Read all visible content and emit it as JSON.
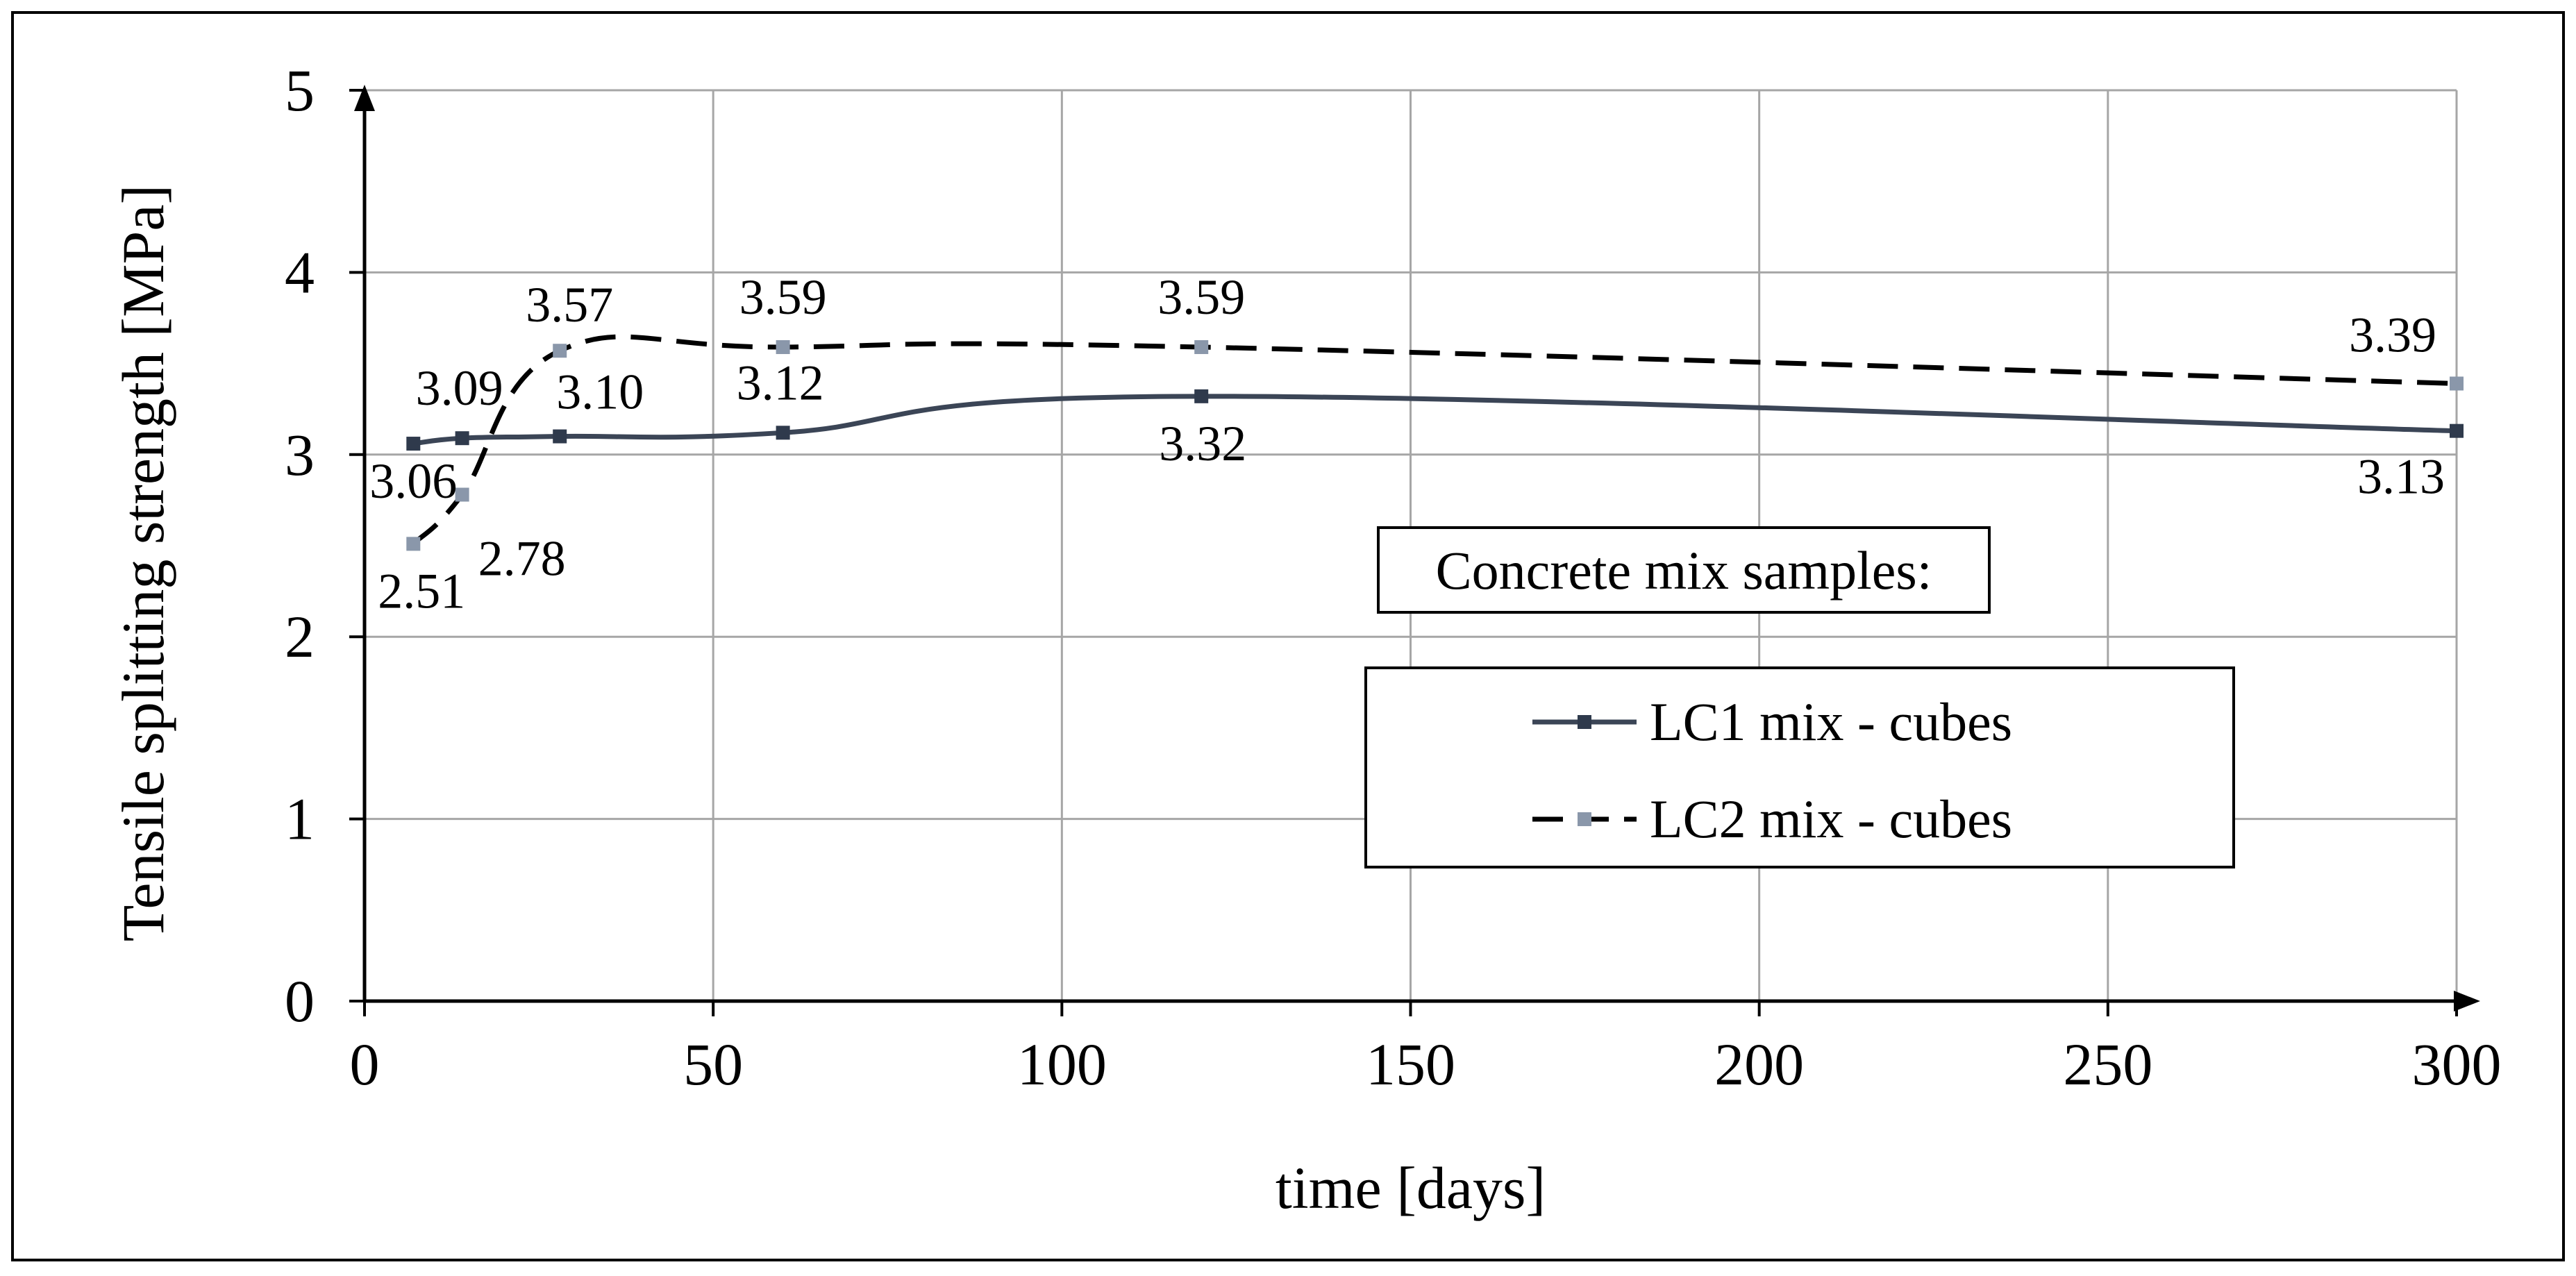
{
  "chart_data": {
    "type": "line",
    "title": "",
    "xlabel": "time [days]",
    "ylabel": "Tensile splitting strength [MPa]",
    "xlim": [
      0,
      300
    ],
    "ylim": [
      0,
      5
    ],
    "x_ticks": [
      0,
      50,
      100,
      150,
      200,
      250,
      300
    ],
    "y_ticks": [
      0,
      1,
      2,
      3,
      4,
      5
    ],
    "grid": true,
    "legend_title": "Concrete mix samples:",
    "legend_position": "center-right",
    "series": [
      {
        "name": "LC1 mix - cubes",
        "style": "solid",
        "color": "#3b4556",
        "marker_color": "#2f3a4c",
        "x": [
          7,
          14,
          28,
          60,
          120,
          300
        ],
        "values": [
          3.06,
          3.09,
          3.1,
          3.12,
          3.32,
          3.13
        ],
        "labels": [
          "3.06",
          "3.09",
          "3.10",
          "3.12",
          "3.32",
          "3.13"
        ]
      },
      {
        "name": "LC2 mix - cubes",
        "style": "dashed",
        "color": "#000000",
        "marker_color": "#8a97aa",
        "x": [
          7,
          14,
          28,
          60,
          120,
          300
        ],
        "values": [
          2.51,
          2.78,
          3.57,
          3.59,
          3.59,
          3.39
        ],
        "labels": [
          "2.51",
          "2.78",
          "3.57",
          "3.59",
          "3.59",
          "3.39"
        ]
      }
    ]
  }
}
